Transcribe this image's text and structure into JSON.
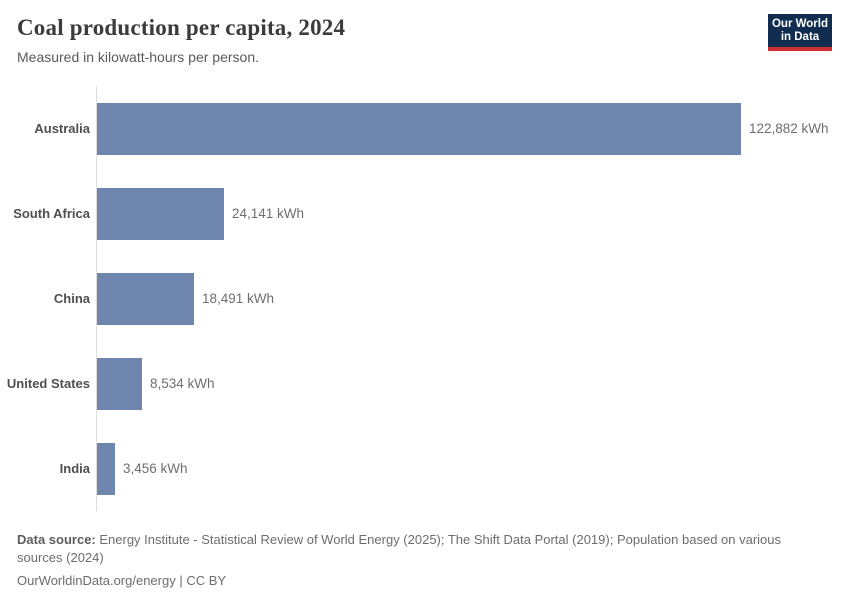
{
  "header": {
    "title": "Coal production per capita, 2024",
    "subtitle": "Measured in kilowatt-hours per person.",
    "logo": {
      "line1": "Our World",
      "line2": "in Data"
    }
  },
  "chart_data": {
    "type": "bar",
    "orientation": "horizontal",
    "title": "Coal production per capita, 2024",
    "unit": "kWh",
    "categories": [
      "Australia",
      "South Africa",
      "China",
      "United States",
      "India"
    ],
    "values": [
      122882,
      24141,
      18491,
      8534,
      3456
    ],
    "value_labels": [
      "122,882 kWh",
      "24,141 kWh",
      "18,491 kWh",
      "8,534 kWh",
      "3,456 kWh"
    ],
    "xlim": [
      0,
      122882
    ],
    "grid": false,
    "legend": "none",
    "bar_color": "#6e85ad",
    "axis_line_color": "#dedede"
  },
  "footer": {
    "source_label": "Data source:",
    "source_text": " Energy Institute - Statistical Review of World Energy (2025); The Shift Data Portal (2019); Population based on various sources (2024)",
    "link_line": "OurWorldinData.org/energy | CC BY"
  }
}
